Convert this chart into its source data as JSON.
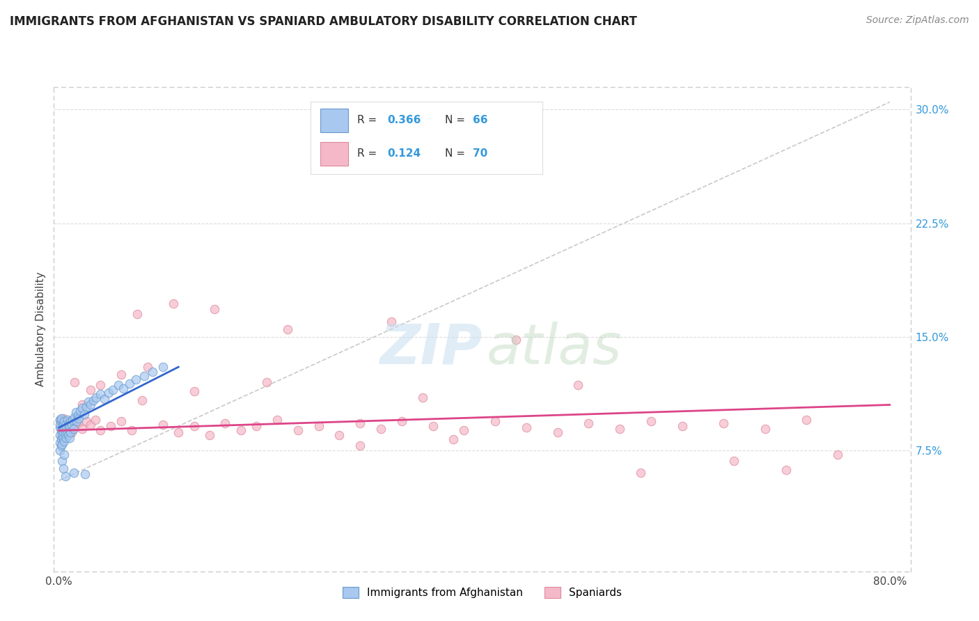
{
  "title": "IMMIGRANTS FROM AFGHANISTAN VS SPANIARD AMBULATORY DISABILITY CORRELATION CHART",
  "source": "Source: ZipAtlas.com",
  "ylabel": "Ambulatory Disability",
  "xlim": [
    -0.005,
    0.82
  ],
  "ylim": [
    -0.005,
    0.315
  ],
  "xtick_positions": [
    0.0,
    0.1,
    0.2,
    0.3,
    0.4,
    0.5,
    0.6,
    0.7,
    0.8
  ],
  "xticklabels": [
    "0.0%",
    "",
    "",
    "",
    "",
    "",
    "",
    "",
    "80.0%"
  ],
  "ytick_positions": [
    0.075,
    0.15,
    0.225,
    0.3
  ],
  "ytick_labels": [
    "7.5%",
    "15.0%",
    "22.5%",
    "30.0%"
  ],
  "blue_fill": "#a8c8f0",
  "blue_edge": "#6699cc",
  "pink_fill": "#f5b8c8",
  "pink_edge": "#dd8899",
  "blue_line_color": "#3366cc",
  "pink_line_color": "#dd4488",
  "gray_dash_color": "#bbbbbb",
  "grid_color": "#dddddd",
  "legend_box_color": "#f8f8f8",
  "R1": "0.366",
  "N1": "66",
  "R2": "0.124",
  "N2": "70",
  "blue_x": [
    0.001,
    0.001,
    0.001,
    0.001,
    0.001,
    0.001,
    0.002,
    0.002,
    0.002,
    0.002,
    0.002,
    0.003,
    0.003,
    0.003,
    0.003,
    0.004,
    0.004,
    0.004,
    0.005,
    0.005,
    0.005,
    0.006,
    0.006,
    0.007,
    0.007,
    0.008,
    0.008,
    0.009,
    0.009,
    0.01,
    0.01,
    0.011,
    0.011,
    0.012,
    0.013,
    0.014,
    0.015,
    0.016,
    0.017,
    0.018,
    0.019,
    0.02,
    0.022,
    0.024,
    0.026,
    0.028,
    0.03,
    0.033,
    0.036,
    0.04,
    0.044,
    0.048,
    0.052,
    0.057,
    0.062,
    0.068,
    0.074,
    0.082,
    0.09,
    0.1,
    0.003,
    0.004,
    0.005,
    0.006,
    0.014,
    0.025
  ],
  "blue_y": [
    0.09,
    0.085,
    0.095,
    0.08,
    0.092,
    0.075,
    0.088,
    0.094,
    0.082,
    0.078,
    0.096,
    0.084,
    0.091,
    0.086,
    0.079,
    0.093,
    0.087,
    0.083,
    0.089,
    0.094,
    0.081,
    0.092,
    0.086,
    0.09,
    0.083,
    0.095,
    0.087,
    0.092,
    0.085,
    0.091,
    0.083,
    0.094,
    0.087,
    0.092,
    0.095,
    0.089,
    0.097,
    0.1,
    0.094,
    0.098,
    0.096,
    0.101,
    0.103,
    0.099,
    0.104,
    0.107,
    0.105,
    0.108,
    0.11,
    0.112,
    0.109,
    0.113,
    0.115,
    0.118,
    0.116,
    0.119,
    0.122,
    0.124,
    0.127,
    0.13,
    0.068,
    0.063,
    0.072,
    0.058,
    0.06,
    0.059
  ],
  "pink_x": [
    0.001,
    0.002,
    0.003,
    0.004,
    0.005,
    0.006,
    0.007,
    0.008,
    0.009,
    0.01,
    0.012,
    0.015,
    0.018,
    0.022,
    0.026,
    0.03,
    0.035,
    0.04,
    0.05,
    0.06,
    0.07,
    0.085,
    0.1,
    0.115,
    0.13,
    0.145,
    0.16,
    0.175,
    0.19,
    0.21,
    0.23,
    0.25,
    0.27,
    0.29,
    0.31,
    0.33,
    0.36,
    0.39,
    0.42,
    0.45,
    0.48,
    0.51,
    0.54,
    0.57,
    0.6,
    0.64,
    0.68,
    0.72,
    0.38,
    0.29,
    0.015,
    0.022,
    0.03,
    0.04,
    0.06,
    0.08,
    0.13,
    0.2,
    0.35,
    0.5,
    0.075,
    0.11,
    0.15,
    0.22,
    0.32,
    0.44,
    0.56,
    0.65,
    0.7,
    0.75
  ],
  "pink_y": [
    0.095,
    0.088,
    0.092,
    0.096,
    0.09,
    0.085,
    0.093,
    0.088,
    0.091,
    0.094,
    0.087,
    0.09,
    0.093,
    0.089,
    0.094,
    0.092,
    0.095,
    0.088,
    0.091,
    0.094,
    0.088,
    0.13,
    0.092,
    0.087,
    0.091,
    0.085,
    0.093,
    0.088,
    0.091,
    0.095,
    0.088,
    0.091,
    0.085,
    0.093,
    0.089,
    0.094,
    0.091,
    0.088,
    0.094,
    0.09,
    0.087,
    0.093,
    0.089,
    0.094,
    0.091,
    0.093,
    0.089,
    0.095,
    0.082,
    0.078,
    0.12,
    0.105,
    0.115,
    0.118,
    0.125,
    0.108,
    0.114,
    0.12,
    0.11,
    0.118,
    0.165,
    0.172,
    0.168,
    0.155,
    0.16,
    0.148,
    0.06,
    0.068,
    0.062,
    0.072
  ],
  "blue_line_x": [
    0.0,
    0.115
  ],
  "blue_line_y": [
    0.09,
    0.13
  ],
  "pink_line_x": [
    0.0,
    0.8
  ],
  "pink_line_y": [
    0.088,
    0.105
  ],
  "gray_line_x": [
    0.0,
    0.8
  ],
  "gray_line_y": [
    0.055,
    0.305
  ]
}
